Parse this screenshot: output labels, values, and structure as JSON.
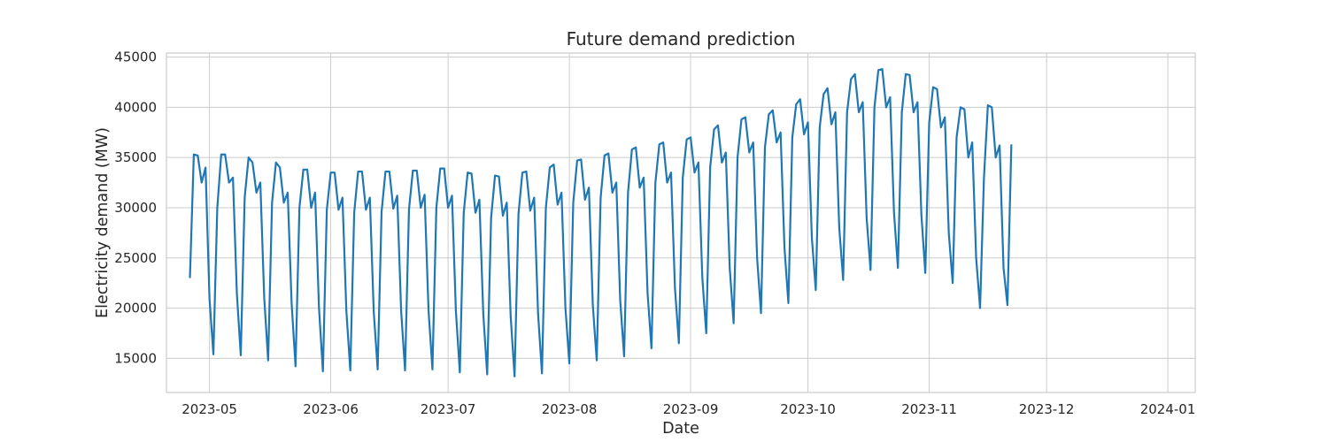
{
  "chart_data": {
    "type": "line",
    "title": "Future demand prediction",
    "xlabel": "Date",
    "ylabel": "Electricity demand (MW)",
    "grid": true,
    "legend": "none",
    "xlim": [
      "2023-04-20",
      "2024-01-08"
    ],
    "ylim": [
      11600,
      45400
    ],
    "x_ticks": [
      "2023-05",
      "2023-06",
      "2023-07",
      "2023-08",
      "2023-09",
      "2023-10",
      "2023-11",
      "2023-12",
      "2024-01"
    ],
    "y_ticks": [
      15000,
      20000,
      25000,
      30000,
      35000,
      40000,
      45000
    ],
    "x_range": [
      "2023-04-26",
      "2024-01-01"
    ],
    "colors": {
      "series": "#1f77b4",
      "grid": "#cccccc",
      "text": "#262626"
    },
    "series": [
      {
        "name": "",
        "sampling": "daily",
        "values": [
          23000,
          35300,
          35200,
          32500,
          34000,
          21000,
          15400,
          30000,
          35300,
          35300,
          32500,
          33000,
          21500,
          15300,
          31000,
          35000,
          34500,
          31500,
          32500,
          21000,
          14800,
          30500,
          34500,
          34000,
          30500,
          31500,
          20500,
          14200,
          30000,
          33800,
          33800,
          30000,
          31500,
          20000,
          13700,
          29800,
          33500,
          33500,
          29800,
          31000,
          19700,
          13800,
          29500,
          33600,
          33600,
          29800,
          31000,
          19600,
          13900,
          29600,
          33600,
          33600,
          29900,
          31200,
          19700,
          13800,
          29800,
          33700,
          33700,
          30000,
          31300,
          19800,
          13900,
          30000,
          33900,
          33900,
          30000,
          31200,
          19700,
          13600,
          29500,
          33500,
          33400,
          29500,
          30800,
          19400,
          13400,
          29000,
          33200,
          33100,
          29200,
          30500,
          19200,
          13200,
          29400,
          33500,
          33600,
          29700,
          31000,
          19500,
          13500,
          30000,
          34000,
          34300,
          30300,
          31500,
          20000,
          14500,
          30500,
          34700,
          34800,
          30800,
          32000,
          20300,
          14800,
          31000,
          35200,
          35400,
          31500,
          32500,
          20800,
          15200,
          31500,
          35800,
          36000,
          32000,
          33000,
          21500,
          16000,
          32500,
          36300,
          36500,
          32500,
          33500,
          22000,
          16500,
          33000,
          36800,
          37000,
          33500,
          34500,
          23000,
          17500,
          34000,
          37800,
          38200,
          34500,
          35500,
          24000,
          18500,
          35000,
          38800,
          39000,
          35500,
          36500,
          25000,
          19500,
          36000,
          39300,
          39700,
          36500,
          37500,
          26000,
          20500,
          37000,
          40300,
          40800,
          37300,
          38500,
          27000,
          21800,
          38000,
          41300,
          41900,
          38300,
          39500,
          28000,
          22800,
          39500,
          42800,
          43300,
          39500,
          40500,
          29000,
          23800,
          40000,
          43700,
          43800,
          40000,
          41000,
          29500,
          24000,
          39500,
          43300,
          43200,
          39500,
          40500,
          29300,
          23500,
          38500,
          42000,
          41800,
          38000,
          39000,
          27500,
          22500,
          37000,
          40000,
          39800,
          35000,
          36500,
          25000,
          20000,
          33000,
          40200,
          40000,
          35000,
          36200,
          24000,
          20300,
          36300
        ]
      }
    ]
  }
}
